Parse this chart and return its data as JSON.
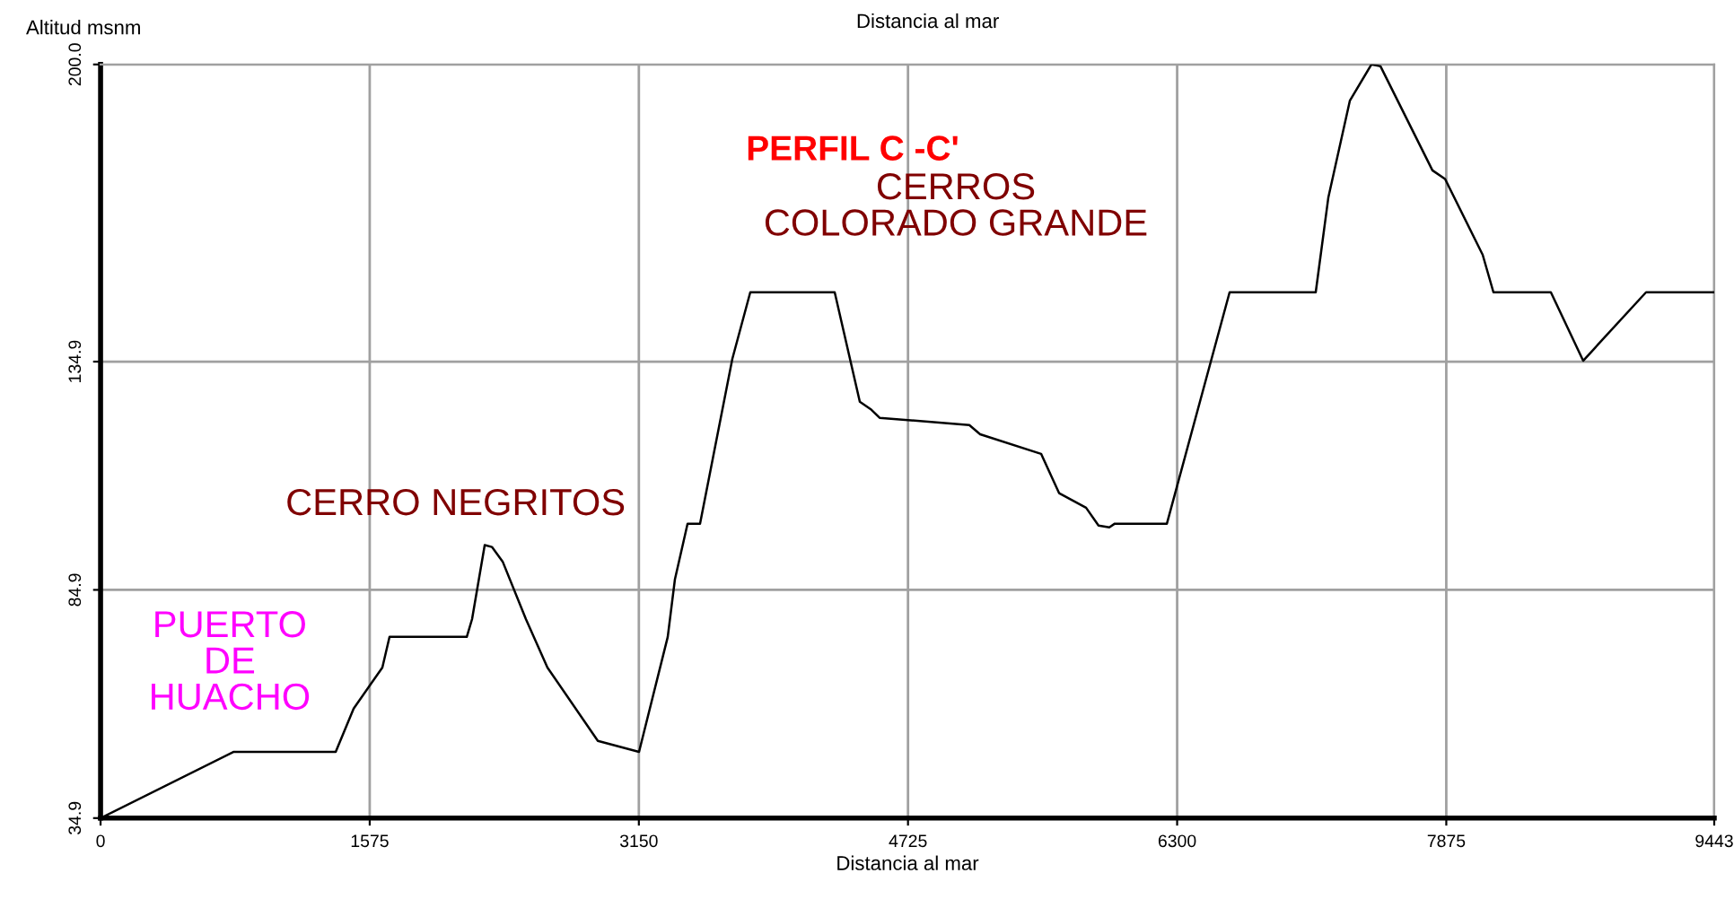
{
  "chart_data": {
    "type": "line",
    "title": "PERFIL C -C'",
    "xlabel": "Distancia al mar",
    "x2label": "Distancia al mar",
    "ylabel": "Altitud msnm",
    "annotations": [
      "PUERTO\nDE\nHUACHO",
      "CERRO NEGRITOS",
      "CERROS\nCOLORADO GRANDE"
    ],
    "x": [
      0,
      777,
      1376,
      1481,
      1649,
      1691,
      2143,
      2174,
      2248,
      2290,
      2353,
      2489,
      2615,
      2910,
      3151,
      3319,
      3361,
      3435,
      3508,
      3697,
      3802,
      4296,
      4443,
      4506,
      4559,
      5084,
      5147,
      5504,
      5609,
      5767,
      5840,
      5903,
      5935,
      6240,
      6607,
      7111,
      7185,
      7311,
      7437,
      7490,
      7794,
      7868,
      8088,
      8151,
      8487,
      8676,
      9044,
      9443
    ],
    "series": [
      {
        "color": "#000000",
        "values": [
          34.9,
          49.4,
          49.4,
          58.9,
          67.9,
          74.6,
          74.6,
          78.5,
          94.7,
          94.3,
          91.1,
          78.5,
          67.9,
          51.8,
          49.4,
          74.6,
          87.2,
          99.4,
          99.4,
          135.5,
          150.1,
          150.1,
          126.1,
          124.5,
          122.6,
          121.0,
          119.0,
          114.7,
          106.1,
          102.9,
          99.0,
          98.6,
          99.4,
          99.4,
          150.1,
          150.1,
          170.9,
          192.1,
          200.0,
          199.6,
          176.8,
          174.9,
          158.3,
          150.1,
          150.1,
          135.1,
          150.1,
          150.1
        ]
      }
    ],
    "xlim": [
      0,
      9443
    ],
    "xticks": [
      0,
      1575,
      3150,
      4725,
      6300,
      7875,
      9443
    ],
    "ylim": [
      34.9,
      200
    ],
    "yticks": [
      34.9,
      84.9,
      134.9,
      {
        "value": 200,
        "label": "200.0"
      }
    ],
    "grid": true,
    "legend": false,
    "marker": "none",
    "line_style": "solid"
  }
}
